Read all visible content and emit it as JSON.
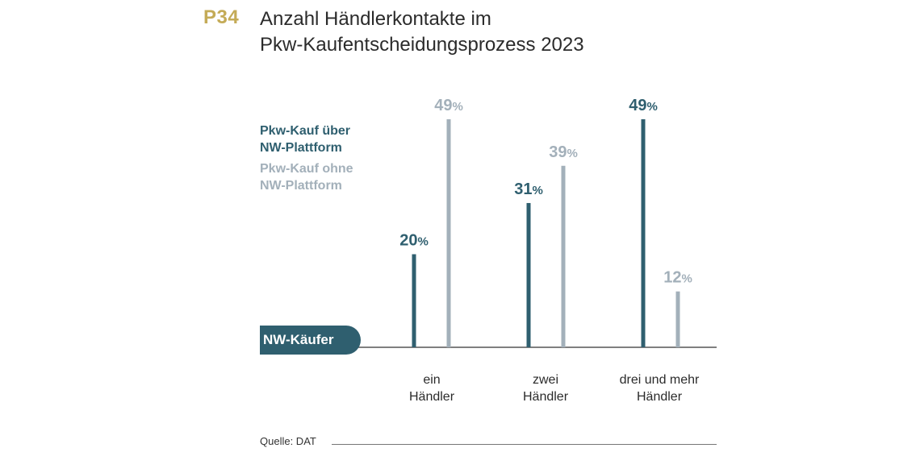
{
  "header": {
    "code": "P34",
    "title_line1": "Anzahl Händlerkontakte im",
    "title_line2": "Pkw-Kaufentscheidungsprozess 2023"
  },
  "badge": {
    "label": "NW-Käufer"
  },
  "source": {
    "label": "Quelle: DAT"
  },
  "chart_data": {
    "type": "bar",
    "title": "Anzahl Händlerkontakte im Pkw-Kaufentscheidungsprozess 2023",
    "categories": [
      {
        "line1": "ein",
        "line2": "Händler"
      },
      {
        "line1": "zwei",
        "line2": "Händler"
      },
      {
        "line1": "drei und mehr",
        "line2": "Händler"
      }
    ],
    "series": [
      {
        "name_line1": "Pkw-Kauf über",
        "name_line2": "NW-Plattform",
        "color": "#2f5f6f",
        "values": [
          20,
          31,
          49
        ]
      },
      {
        "name_line1": "Pkw-Kauf ohne",
        "name_line2": "NW-Plattform",
        "color": "#a3b0ba",
        "values": [
          49,
          39,
          12
        ]
      }
    ],
    "value_suffix": "%",
    "ylim": [
      0,
      49
    ],
    "grid": false,
    "legend_position": "left"
  }
}
